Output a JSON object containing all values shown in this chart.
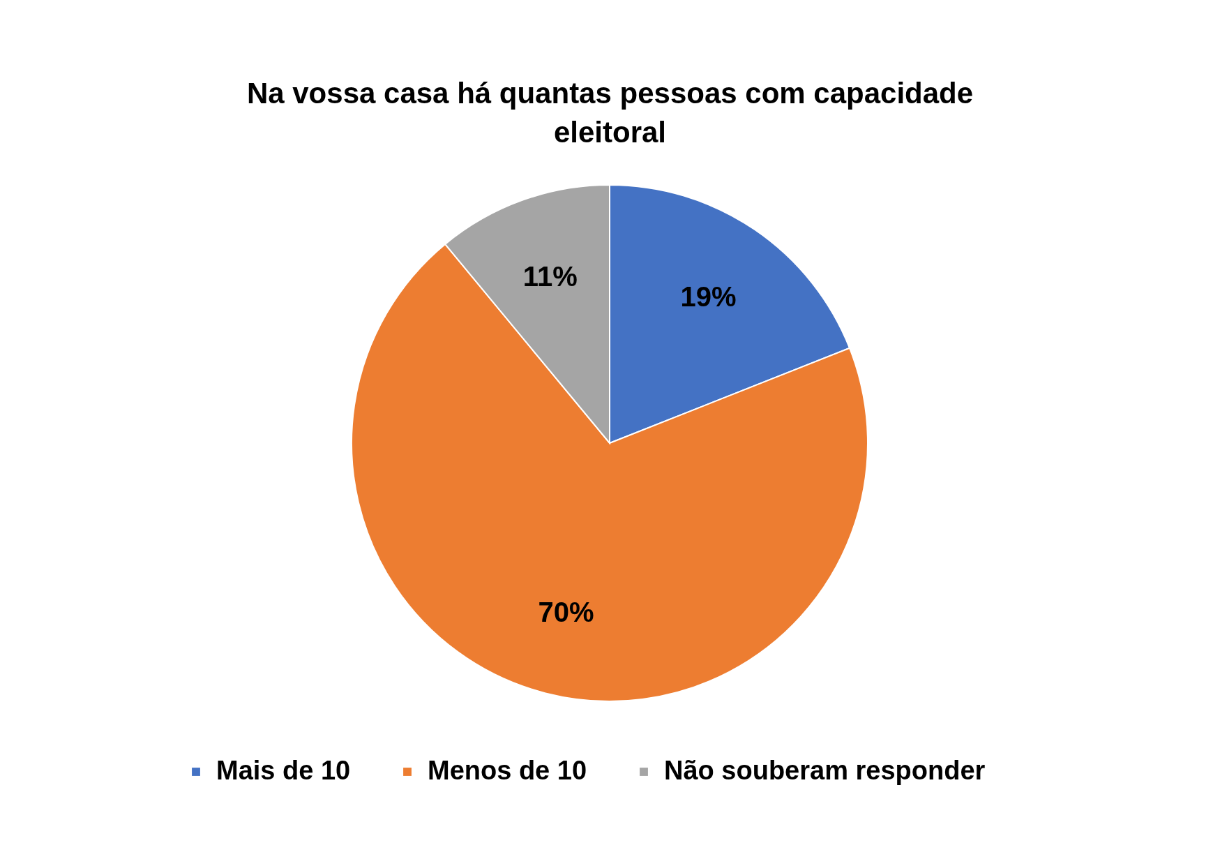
{
  "chart_data": {
    "type": "pie",
    "title": "Na vossa casa há quantas pessoas com capacidade eleitoral",
    "categories": [
      "Mais de 10",
      "Menos de 10",
      "Não souberam responder"
    ],
    "values": [
      19,
      70,
      11
    ],
    "colors": [
      "#4472c4",
      "#ed7d31",
      "#a5a5a5"
    ],
    "value_labels": [
      "19%",
      "70%",
      "11%"
    ],
    "legend": "bottom"
  }
}
